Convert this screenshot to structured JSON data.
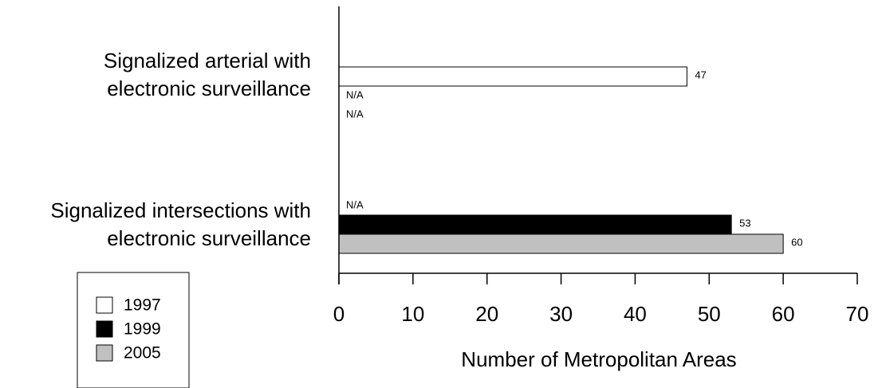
{
  "chart_data": {
    "type": "bar",
    "orientation": "horizontal",
    "categories": [
      [
        "Signalized arterial with",
        "electronic surveillance"
      ],
      [
        "Signalized intersections with",
        "electronic surveillance"
      ]
    ],
    "series": [
      {
        "name": "1997",
        "color": "#ffffff",
        "values": [
          47,
          null
        ],
        "labels": [
          "47",
          "N/A"
        ]
      },
      {
        "name": "1999",
        "color": "#000000",
        "values": [
          null,
          53
        ],
        "labels": [
          "N/A",
          "53"
        ]
      },
      {
        "name": "2005",
        "color": "#c0c0c0",
        "values": [
          null,
          60
        ],
        "labels": [
          "N/A",
          "60"
        ]
      }
    ],
    "xlabel": "Number of Metropolitan Areas",
    "xlim": [
      0,
      70
    ],
    "xticks": [
      0,
      10,
      20,
      30,
      40,
      50,
      60,
      70
    ],
    "grid": false,
    "legend_position": "bottom-left"
  }
}
